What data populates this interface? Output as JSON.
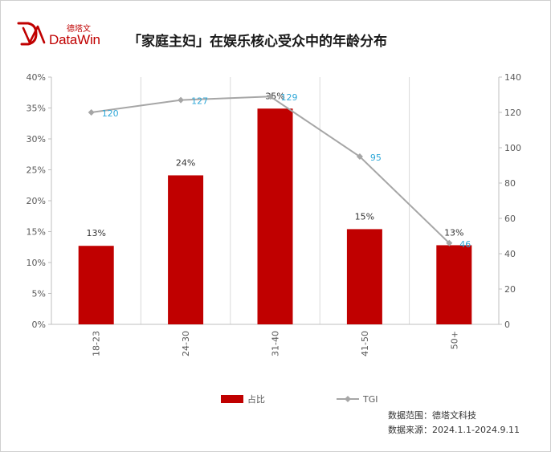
{
  "brand": {
    "logo_cn": "德塔文",
    "logo_en": "DataWin"
  },
  "header": {
    "title": "「家庭主妇」在娱乐核心受众中的年龄分布"
  },
  "footer": {
    "scope": "数据范围：德塔文科技",
    "source": "数据来源：2024.1.1-2024.9.11"
  },
  "chart_data": {
    "type": "bar",
    "categories": [
      "18-23",
      "24-30",
      "31-40",
      "41-50",
      "50+"
    ],
    "series": [
      {
        "name": "占比",
        "type": "bar",
        "axis": "left",
        "values": [
          12.7,
          24.1,
          34.9,
          15.4,
          12.8
        ],
        "labels": [
          "13%",
          "24%",
          "35%",
          "15%",
          "13%"
        ],
        "color": "#c00000"
      },
      {
        "name": "TGI",
        "type": "line",
        "axis": "right",
        "values": [
          120,
          127,
          129,
          95,
          46
        ],
        "labels": [
          "120",
          "127",
          "129",
          "95",
          "46"
        ],
        "color": "#a6a6a6",
        "label_color": "#2fa8d8"
      }
    ],
    "y_left": {
      "ylim": [
        0,
        40
      ],
      "ticks": [
        0,
        5,
        10,
        15,
        20,
        25,
        30,
        35,
        40
      ],
      "tick_labels": [
        "0%",
        "5%",
        "10%",
        "15%",
        "20%",
        "25%",
        "30%",
        "35%",
        "40%"
      ]
    },
    "y_right": {
      "ylim": [
        0,
        140
      ],
      "ticks": [
        0,
        20,
        40,
        60,
        80,
        100,
        120,
        140
      ],
      "tick_labels": [
        "0",
        "20",
        "40",
        "60",
        "80",
        "100",
        "120",
        "140"
      ]
    },
    "grid": "vertical-category-lines",
    "legend_position": "bottom",
    "xlabel": "",
    "ylabel": ""
  }
}
